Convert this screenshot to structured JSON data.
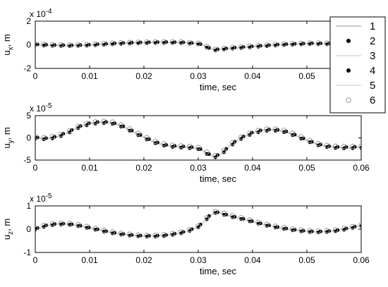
{
  "chart_data": [
    {
      "type": "line",
      "xlabel": "time, sec",
      "ylabel_main": "u",
      "ylabel_sub": "x",
      "ylabel_unit": ", m",
      "exponent_prefix": "x 10",
      "exponent": "-4",
      "xlim": [
        0,
        0.06
      ],
      "ylim": [
        -2,
        2
      ],
      "scale": 0.0001,
      "xticks": [
        "0",
        "0.01",
        "0.02",
        "0.03",
        "0.04",
        "0.05"
      ],
      "xtick_values": [
        0,
        0.01,
        0.02,
        0.03,
        0.04,
        0.05
      ],
      "yticks": [
        "-2",
        "0",
        "2"
      ],
      "ytick_values": [
        -2,
        0,
        2
      ],
      "x": [
        0,
        0.003,
        0.006,
        0.009,
        0.012,
        0.015,
        0.018,
        0.021,
        0.024,
        0.027,
        0.03,
        0.031,
        0.032,
        0.033,
        0.034,
        0.035,
        0.036,
        0.039,
        0.042,
        0.045,
        0.048,
        0.051,
        0.054,
        0.057,
        0.06
      ],
      "y": [
        0,
        -0.05,
        -0.08,
        -0.05,
        0.02,
        0.1,
        0.15,
        0.18,
        0.2,
        0.18,
        0.08,
        -0.05,
        -0.3,
        -0.45,
        -0.4,
        -0.35,
        -0.3,
        -0.2,
        -0.1,
        0,
        0.05,
        0.1,
        0.08,
        0.05,
        0.1
      ],
      "series": [
        {
          "name": "1",
          "style": "line",
          "color": "#aaaaaa",
          "dy": 0
        },
        {
          "name": "2",
          "style": "dot",
          "color": "#000000",
          "dy": -0.04
        },
        {
          "name": "3",
          "style": "line",
          "color": "#cfcfcf",
          "dy": 0.02
        },
        {
          "name": "4",
          "style": "dot",
          "color": "#000000",
          "dy": 0.04
        },
        {
          "name": "5",
          "style": "line",
          "color": "#cfcfcf",
          "dy": -0.02
        },
        {
          "name": "6",
          "style": "circle",
          "color": "#9a9a9a",
          "dy": 0.06
        }
      ]
    },
    {
      "type": "line",
      "xlabel": "time, sec",
      "ylabel_main": "u",
      "ylabel_sub": "y",
      "ylabel_unit": ", m",
      "exponent_prefix": "x 10",
      "exponent": "-5",
      "xlim": [
        0,
        0.06
      ],
      "ylim": [
        -5,
        5
      ],
      "scale": 1e-05,
      "xticks": [
        "0",
        "0.01",
        "0.02",
        "0.03",
        "0.04",
        "0.05",
        "0.06"
      ],
      "xtick_values": [
        0,
        0.01,
        0.02,
        0.03,
        0.04,
        0.05,
        0.06
      ],
      "yticks": [
        "-5",
        "0",
        "5"
      ],
      "ytick_values": [
        -5,
        0,
        5
      ],
      "x": [
        0,
        0.002,
        0.004,
        0.006,
        0.008,
        0.01,
        0.012,
        0.014,
        0.016,
        0.018,
        0.02,
        0.022,
        0.024,
        0.026,
        0.028,
        0.03,
        0.031,
        0.032,
        0.033,
        0.034,
        0.035,
        0.036,
        0.038,
        0.04,
        0.042,
        0.044,
        0.046,
        0.048,
        0.05,
        0.052,
        0.054,
        0.056,
        0.058,
        0.06
      ],
      "y": [
        0,
        -0.2,
        0.2,
        1.2,
        2.4,
        3.2,
        3.5,
        3.4,
        2.6,
        1.4,
        0.1,
        -1.0,
        -1.7,
        -2.0,
        -2.1,
        -2.4,
        -3.0,
        -3.8,
        -4.3,
        -3.8,
        -2.8,
        -1.6,
        0,
        1.1,
        1.7,
        1.8,
        1.4,
        0.5,
        -0.6,
        -1.5,
        -2.0,
        -2.2,
        -2.2,
        -2.1
      ],
      "series": [
        {
          "name": "1",
          "style": "line",
          "color": "#aaaaaa",
          "dy": 0
        },
        {
          "name": "2",
          "style": "dot",
          "color": "#000000",
          "dy": -0.15
        },
        {
          "name": "3",
          "style": "line",
          "color": "#cfcfcf",
          "dy": 0.1
        },
        {
          "name": "4",
          "style": "dot",
          "color": "#000000",
          "dy": 0.15
        },
        {
          "name": "5",
          "style": "line",
          "color": "#cfcfcf",
          "dy": -0.1
        },
        {
          "name": "6",
          "style": "circle",
          "color": "#9a9a9a",
          "dy": 0.25
        }
      ]
    },
    {
      "type": "line",
      "xlabel": "time, sec",
      "ylabel_main": "u",
      "ylabel_sub": "z",
      "ylabel_unit": ", m",
      "exponent_prefix": "x 10",
      "exponent": "-5",
      "xlim": [
        0,
        0.06
      ],
      "ylim": [
        -1,
        1
      ],
      "scale": 1e-05,
      "xticks": [
        "0",
        "0.01",
        "0.02",
        "0.03",
        "0.04",
        "0.05",
        "0.06"
      ],
      "xtick_values": [
        0,
        0.01,
        0.02,
        0.03,
        0.04,
        0.05,
        0.06
      ],
      "yticks": [
        "-1",
        "0",
        "1"
      ],
      "ytick_values": [
        -1,
        0,
        1
      ],
      "x": [
        0,
        0.002,
        0.004,
        0.006,
        0.008,
        0.01,
        0.012,
        0.014,
        0.016,
        0.018,
        0.02,
        0.022,
        0.024,
        0.026,
        0.028,
        0.03,
        0.031,
        0.032,
        0.033,
        0.034,
        0.035,
        0.036,
        0.038,
        0.04,
        0.042,
        0.044,
        0.046,
        0.048,
        0.05,
        0.052,
        0.054,
        0.056,
        0.058,
        0.06
      ],
      "y": [
        0,
        0.15,
        0.22,
        0.22,
        0.15,
        0.05,
        -0.05,
        -0.15,
        -0.22,
        -0.27,
        -0.3,
        -0.3,
        -0.27,
        -0.2,
        -0.1,
        0.1,
        0.3,
        0.55,
        0.72,
        0.7,
        0.62,
        0.55,
        0.45,
        0.32,
        0.2,
        0.1,
        0.02,
        -0.05,
        -0.1,
        -0.12,
        -0.1,
        -0.05,
        0.05,
        0.15
      ],
      "series": [
        {
          "name": "1",
          "style": "line",
          "color": "#aaaaaa",
          "dy": 0
        },
        {
          "name": "2",
          "style": "dot",
          "color": "#000000",
          "dy": -0.02
        },
        {
          "name": "3",
          "style": "line",
          "color": "#cfcfcf",
          "dy": 0.01
        },
        {
          "name": "4",
          "style": "dot",
          "color": "#000000",
          "dy": 0.02
        },
        {
          "name": "5",
          "style": "line",
          "color": "#cfcfcf",
          "dy": -0.01
        },
        {
          "name": "6",
          "style": "circle",
          "color": "#9a9a9a",
          "dy": 0.04
        }
      ]
    }
  ],
  "legend": {
    "placement": "top-right",
    "entries": [
      {
        "label": "1",
        "style": "line",
        "color": "#aaaaaa"
      },
      {
        "label": "2",
        "style": "dot",
        "color": "#000000"
      },
      {
        "label": "3",
        "style": "line",
        "color": "#cfcfcf"
      },
      {
        "label": "4",
        "style": "dot",
        "color": "#000000"
      },
      {
        "label": "5",
        "style": "line",
        "color": "#cfcfcf"
      },
      {
        "label": "6",
        "style": "circle",
        "color": "#9a9a9a"
      }
    ]
  }
}
